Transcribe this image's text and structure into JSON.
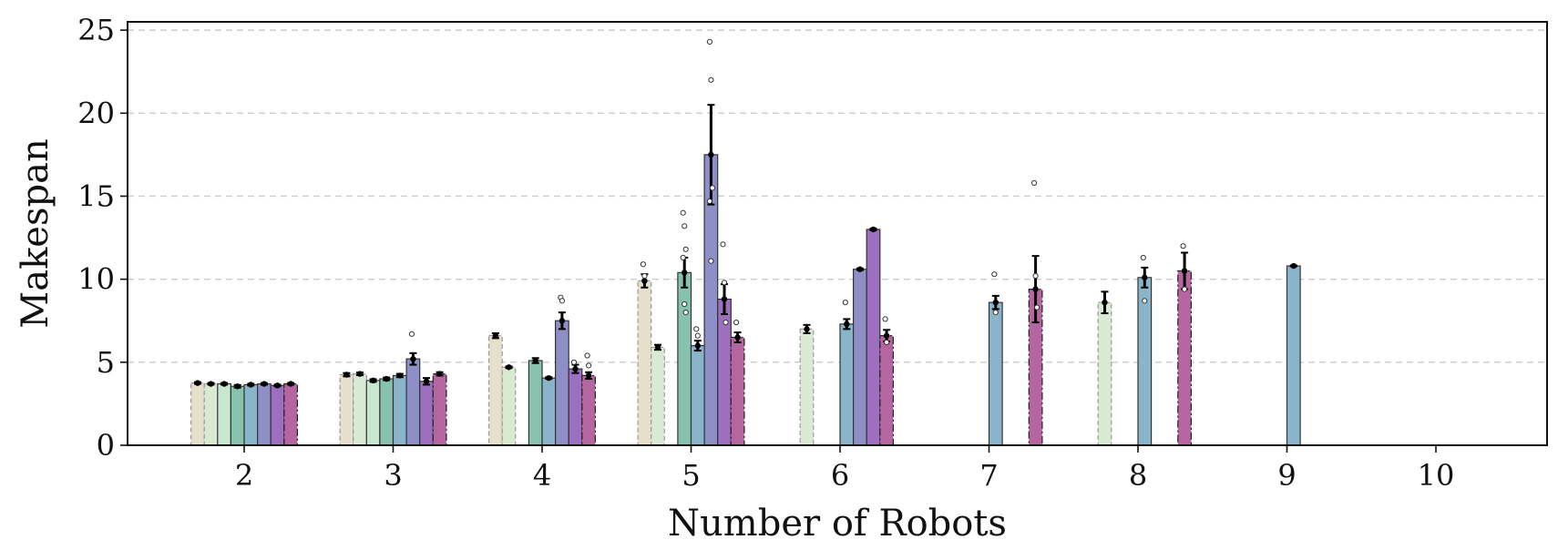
{
  "chart_data": {
    "type": "bar",
    "xlabel": "Number of Robots",
    "ylabel": "Makespan",
    "categories": [
      "2",
      "3",
      "4",
      "5",
      "6",
      "7",
      "8",
      "9",
      "10"
    ],
    "yticks": [
      "0",
      "5",
      "10",
      "15",
      "20",
      "25"
    ],
    "ylim": [
      0,
      25.5
    ],
    "grid": "horizontal dashed",
    "bar_series_colors": [
      "#e6dfcc",
      "#d9ead3",
      "#c9e6d0",
      "#86c2ad",
      "#8ab4c9",
      "#8f8fc8",
      "#9d6fc0",
      "#b566a0"
    ],
    "bar_series_dashed": [
      true,
      true,
      false,
      false,
      false,
      false,
      false,
      true
    ],
    "groups": [
      {
        "category": "2",
        "bars": [
          {
            "series": 0,
            "value": 3.75,
            "err": 0.05
          },
          {
            "series": 1,
            "value": 3.7,
            "err": 0.05
          },
          {
            "series": 2,
            "value": 3.7,
            "err": 0.05
          },
          {
            "series": 3,
            "value": 3.55,
            "err": 0.08
          },
          {
            "series": 4,
            "value": 3.65,
            "err": 0.05
          },
          {
            "series": 5,
            "value": 3.7,
            "err": 0.05
          },
          {
            "series": 6,
            "value": 3.6,
            "err": 0.05
          },
          {
            "series": 7,
            "value": 3.7,
            "err": 0.05
          }
        ]
      },
      {
        "category": "3",
        "bars": [
          {
            "series": 0,
            "value": 4.25,
            "err": 0.1
          },
          {
            "series": 1,
            "value": 4.3,
            "err": 0.08
          },
          {
            "series": 2,
            "value": 3.9,
            "err": 0.08
          },
          {
            "series": 3,
            "value": 4.0,
            "err": 0.08
          },
          {
            "series": 4,
            "value": 4.2,
            "err": 0.1
          },
          {
            "series": 5,
            "value": 5.2,
            "err": 0.35
          },
          {
            "series": 6,
            "value": 3.85,
            "err": 0.2
          },
          {
            "series": 7,
            "value": 4.3,
            "err": 0.1
          }
        ]
      },
      {
        "category": "4",
        "bars": [
          {
            "series": 0,
            "value": 6.6,
            "err": 0.15
          },
          {
            "series": 1,
            "value": 4.7,
            "err": 0.05
          },
          {
            "series": 3,
            "value": 5.1,
            "err": 0.15
          },
          {
            "series": 4,
            "value": 4.05,
            "err": 0.05
          },
          {
            "series": 5,
            "value": 7.5,
            "err": 0.5
          },
          {
            "series": 6,
            "value": 4.6,
            "err": 0.25
          },
          {
            "series": 7,
            "value": 4.2,
            "err": 0.2
          }
        ]
      },
      {
        "category": "5",
        "bars": [
          {
            "series": 0,
            "value": 9.9,
            "err": 0.4
          },
          {
            "series": 1,
            "value": 5.9,
            "err": 0.15
          },
          {
            "series": 3,
            "value": 10.4,
            "err": 0.9
          },
          {
            "series": 4,
            "value": 6.0,
            "err": 0.3
          },
          {
            "series": 5,
            "value": 17.5,
            "err": 3.0
          },
          {
            "series": 6,
            "value": 8.8,
            "err": 0.9
          },
          {
            "series": 7,
            "value": 6.5,
            "err": 0.3
          }
        ]
      },
      {
        "category": "6",
        "bars": [
          {
            "series": 1,
            "value": 7.0,
            "err": 0.25
          },
          {
            "series": 4,
            "value": 7.3,
            "err": 0.3
          },
          {
            "series": 5,
            "value": 10.6,
            "err": 0.05
          },
          {
            "series": 6,
            "value": 13.0,
            "err": 0.05
          },
          {
            "series": 7,
            "value": 6.6,
            "err": 0.35
          }
        ]
      },
      {
        "category": "7",
        "bars": [
          {
            "series": 4,
            "value": 8.6,
            "err": 0.4
          },
          {
            "series": 7,
            "value": 9.4,
            "err": 2.0
          }
        ]
      },
      {
        "category": "8",
        "bars": [
          {
            "series": 1,
            "value": 8.6,
            "err": 0.65
          },
          {
            "series": 4,
            "value": 10.1,
            "err": 0.6
          },
          {
            "series": 7,
            "value": 10.5,
            "err": 1.1
          }
        ]
      },
      {
        "category": "9",
        "bars": [
          {
            "series": 4,
            "value": 10.8,
            "err": 0.03
          }
        ]
      },
      {
        "category": "10",
        "bars": []
      }
    ],
    "outliers": [
      {
        "category": "3",
        "series": 5,
        "values": [
          6.7
        ]
      },
      {
        "category": "5",
        "series": 0,
        "values": [
          10.9,
          10.2
        ]
      },
      {
        "category": "5",
        "series": 3,
        "values": [
          14.0,
          13.2,
          11.8,
          11.3,
          8.5,
          8.0
        ]
      },
      {
        "category": "5",
        "series": 4,
        "values": [
          7.0,
          6.6
        ]
      },
      {
        "category": "5",
        "series": 5,
        "values": [
          24.3,
          22.0,
          15.5,
          14.7,
          11.1
        ]
      },
      {
        "category": "5",
        "series": 6,
        "values": [
          12.1,
          9.8,
          7.4
        ]
      },
      {
        "category": "5",
        "series": 7,
        "values": [
          7.4
        ]
      },
      {
        "category": "4",
        "series": 5,
        "values": [
          8.9,
          8.7
        ]
      },
      {
        "category": "4",
        "series": 6,
        "values": [
          5.0
        ]
      },
      {
        "category": "4",
        "series": 7,
        "values": [
          5.4,
          4.8
        ]
      },
      {
        "category": "6",
        "series": 4,
        "values": [
          8.6
        ]
      },
      {
        "category": "6",
        "series": 7,
        "values": [
          7.6,
          6.2
        ]
      },
      {
        "category": "7",
        "series": 4,
        "values": [
          10.3,
          8.0
        ]
      },
      {
        "category": "7",
        "series": 7,
        "values": [
          15.8,
          10.2,
          8.3
        ]
      },
      {
        "category": "8",
        "series": 4,
        "values": [
          11.3,
          8.7
        ]
      },
      {
        "category": "8",
        "series": 7,
        "values": [
          12.0,
          9.4
        ]
      }
    ]
  }
}
